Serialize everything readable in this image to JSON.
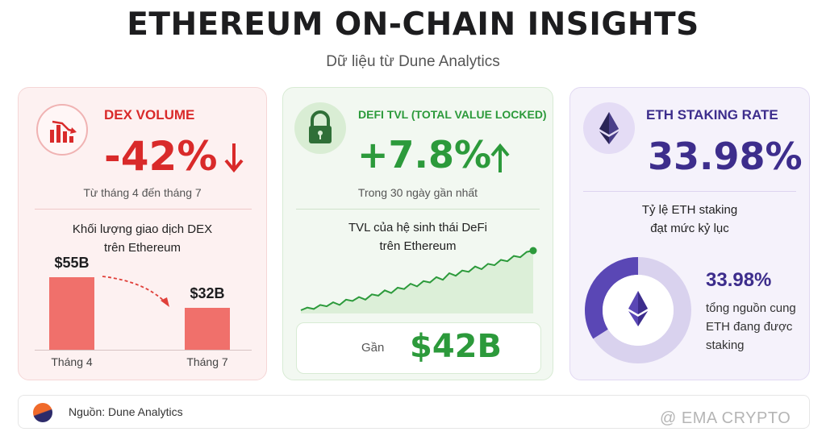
{
  "header": {
    "title": "ETHEREUM ON-CHAIN INSIGHTS",
    "subtitle": "Dữ liệu từ Dune Analytics"
  },
  "dex": {
    "title": "DEX VOLUME",
    "value": "-42%",
    "arrow": "↓",
    "note": "Từ tháng 4 đến tháng 7",
    "chart_title_line1": "Khối lượng giao dịch DEX",
    "chart_title_line2": "trên Ethereum",
    "chart_data": {
      "type": "bar",
      "categories": [
        "Tháng 4",
        "Tháng 7"
      ],
      "values": [
        55,
        32
      ],
      "value_labels": [
        "$55B",
        "$32B"
      ]
    },
    "accent": "#d92a2a"
  },
  "defi": {
    "title": "DEFI TVL (TOTAL VALUE LOCKED)",
    "value": "+7.8%",
    "arrow": "↑",
    "note": "Trong 30 ngày gần nhất",
    "chart_title_line1": "TVL của hệ sinh thái DeFi",
    "chart_title_line2": "trên Ethereum",
    "chart_data": {
      "type": "area",
      "values": [
        5,
        7,
        6,
        9,
        8,
        11,
        9,
        13,
        12,
        15,
        13,
        17,
        16,
        20,
        18,
        22,
        21,
        25,
        23,
        27,
        26,
        30,
        28,
        33,
        31,
        35,
        34,
        38,
        36,
        40,
        39,
        43,
        42,
        46,
        45,
        49,
        50
      ]
    },
    "total_label": "Gần",
    "total_value": "$42B",
    "accent": "#2c9a3b"
  },
  "staking": {
    "title": "ETH STAKING RATE",
    "value": "33.98%",
    "note_line1": "Tỷ lệ ETH staking",
    "note_line2": "đạt mức kỷ lục",
    "donut": {
      "percent": 33.98,
      "label": "33.98%",
      "desc_line1": "tổng nguồn cung",
      "desc_line2": "ETH đang được",
      "desc_line3": "staking"
    },
    "accent": "#3d2d8c"
  },
  "footer": {
    "source": "Nguồn: Dune Analytics"
  },
  "watermark": "@ EMA CRYPTO"
}
